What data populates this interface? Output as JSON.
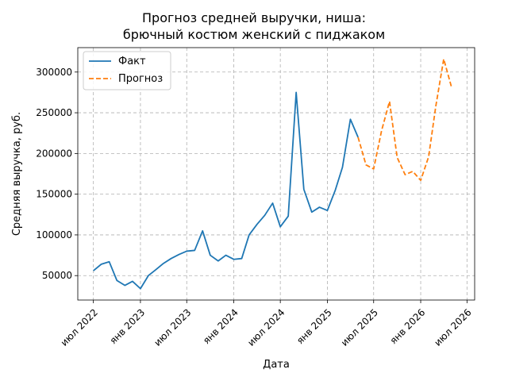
{
  "chart_data": {
    "type": "line",
    "title": "Прогноз средней выручки, ниша:\nбрючный костюм женский с пиджаком",
    "xlabel": "Дата",
    "ylabel": "Средняя выручка, руб.",
    "x_ticks": [
      "июл 2022",
      "янв 2023",
      "июл 2023",
      "янв 2024",
      "июл 2024",
      "янв 2025",
      "июл 2025",
      "янв 2026",
      "июл 2026"
    ],
    "y_ticks": [
      50000,
      100000,
      150000,
      200000,
      250000,
      300000
    ],
    "xlim": [
      "2022-05-01",
      "2026-07-31"
    ],
    "ylim": [
      20000,
      330000
    ],
    "grid": true,
    "grid_style": "dashed",
    "legend_position": "top-left",
    "series": [
      {
        "name": "Факт",
        "color": "#1f77b4",
        "style": "solid",
        "x": [
          "2022-07-01",
          "2022-08-01",
          "2022-09-01",
          "2022-10-01",
          "2022-11-01",
          "2022-12-01",
          "2023-01-01",
          "2023-02-01",
          "2023-03-01",
          "2023-04-01",
          "2023-05-01",
          "2023-06-01",
          "2023-07-01",
          "2023-08-01",
          "2023-09-01",
          "2023-10-01",
          "2023-11-01",
          "2023-12-01",
          "2024-01-01",
          "2024-02-01",
          "2024-03-01",
          "2024-04-01",
          "2024-05-01",
          "2024-06-01",
          "2024-07-01",
          "2024-08-01",
          "2024-09-01",
          "2024-10-01",
          "2024-11-01",
          "2024-12-01",
          "2025-01-01",
          "2025-02-01",
          "2025-03-01",
          "2025-04-01",
          "2025-05-01"
        ],
        "values": [
          56000,
          64000,
          67000,
          44000,
          38000,
          43000,
          34000,
          50000,
          57000,
          65000,
          71000,
          76000,
          80000,
          81000,
          105000,
          75000,
          68000,
          75000,
          70000,
          71000,
          100000,
          113000,
          124000,
          139000,
          110000,
          123000,
          275000,
          156000,
          128000,
          134000,
          130000,
          155000,
          183000,
          242000,
          220000
        ]
      },
      {
        "name": "Прогноз",
        "color": "#ff7f0e",
        "style": "dashed",
        "x": [
          "2025-05-01",
          "2025-06-01",
          "2025-07-01",
          "2025-08-01",
          "2025-09-01",
          "2025-10-01",
          "2025-11-01",
          "2025-12-01",
          "2026-01-01",
          "2026-02-01",
          "2026-03-01",
          "2026-04-01",
          "2026-05-01"
        ],
        "values": [
          220000,
          186000,
          181000,
          228000,
          264000,
          195000,
          174000,
          178000,
          167000,
          196000,
          258000,
          316000,
          282000
        ]
      }
    ]
  }
}
